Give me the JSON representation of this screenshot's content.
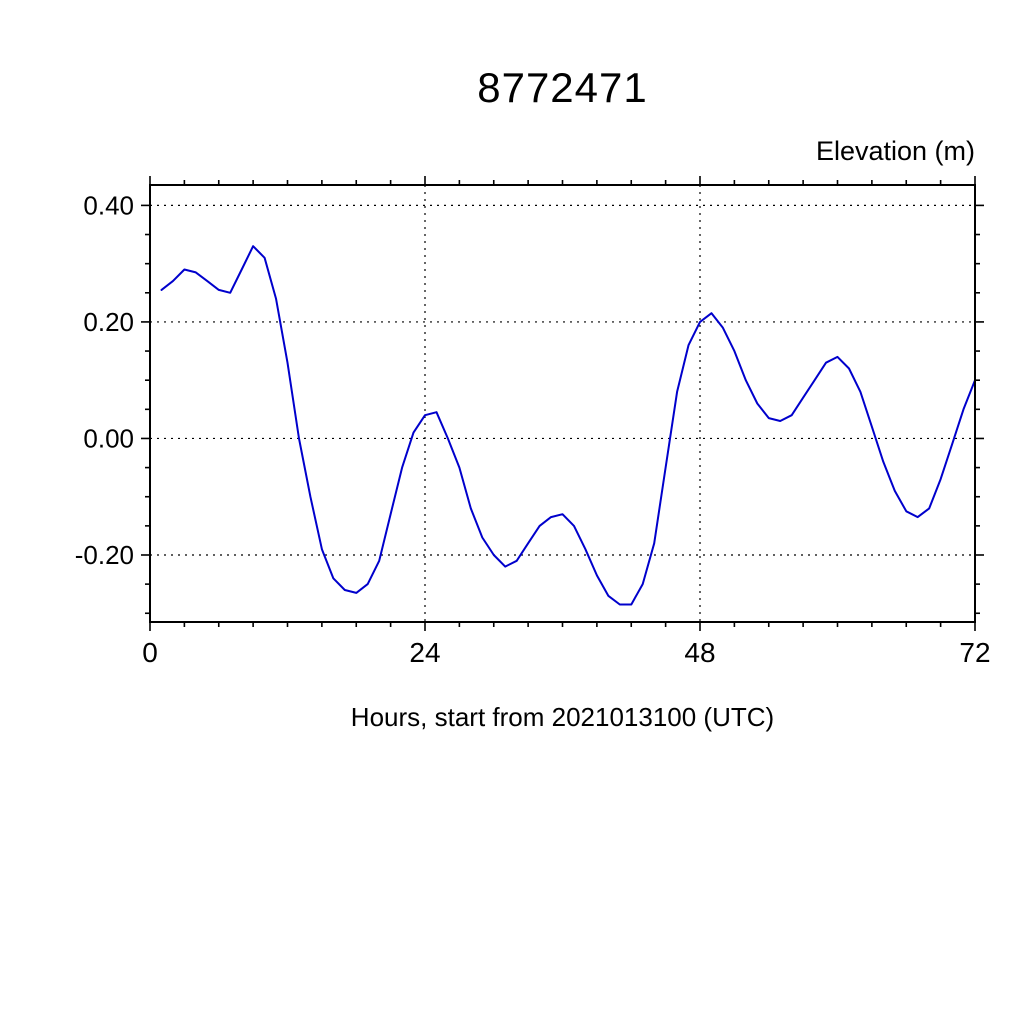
{
  "chart_data": {
    "type": "line",
    "title": "8772471",
    "ylabel": "Elevation (m)",
    "xlabel": "Hours, start from 2021013100 (UTC)",
    "xlim": [
      0,
      72
    ],
    "ylim": [
      -0.315,
      0.435
    ],
    "x_ticks": [
      0,
      24,
      48,
      72
    ],
    "x_tick_labels": [
      "0",
      "24",
      "48",
      "72"
    ],
    "x_grid": [
      24,
      48
    ],
    "x_minor_step": 3,
    "y_ticks": [
      0.4,
      0.2,
      0.0,
      -0.2
    ],
    "y_tick_labels": [
      "0.40",
      "0.20",
      "0.00",
      "-0.20"
    ],
    "y_minor_step": 0.05,
    "grid": "dotted",
    "legend": "none",
    "line_color": "#0000cc",
    "frame_color": "#000000",
    "series": [
      {
        "name": "elevation",
        "x": [
          1,
          2,
          3,
          4,
          5,
          6,
          7,
          8,
          9,
          10,
          11,
          12,
          13,
          14,
          15,
          16,
          17,
          18,
          19,
          20,
          21,
          22,
          23,
          24,
          25,
          26,
          27,
          28,
          29,
          30,
          31,
          32,
          33,
          34,
          35,
          36,
          37,
          38,
          39,
          40,
          41,
          42,
          43,
          44,
          45,
          46,
          47,
          48,
          49,
          50,
          51,
          52,
          53,
          54,
          55,
          56,
          57,
          58,
          59,
          60,
          61,
          62,
          63,
          64,
          65,
          66,
          67,
          68,
          69,
          70,
          71,
          72
        ],
        "y": [
          0.255,
          0.27,
          0.29,
          0.285,
          0.27,
          0.255,
          0.25,
          0.29,
          0.33,
          0.31,
          0.24,
          0.13,
          0.0,
          -0.1,
          -0.19,
          -0.24,
          -0.26,
          -0.265,
          -0.25,
          -0.21,
          -0.13,
          -0.05,
          0.01,
          0.04,
          0.045,
          0.0,
          -0.05,
          -0.12,
          -0.17,
          -0.2,
          -0.22,
          -0.21,
          -0.18,
          -0.15,
          -0.135,
          -0.13,
          -0.15,
          -0.19,
          -0.235,
          -0.27,
          -0.285,
          -0.285,
          -0.25,
          -0.18,
          -0.05,
          0.08,
          0.16,
          0.2,
          0.215,
          0.19,
          0.15,
          0.1,
          0.06,
          0.035,
          0.03,
          0.04,
          0.07,
          0.1,
          0.13,
          0.14,
          0.12,
          0.08,
          0.02,
          -0.04,
          -0.09,
          -0.125,
          -0.135,
          -0.12,
          -0.07,
          -0.01,
          0.05,
          0.1
        ]
      }
    ]
  }
}
